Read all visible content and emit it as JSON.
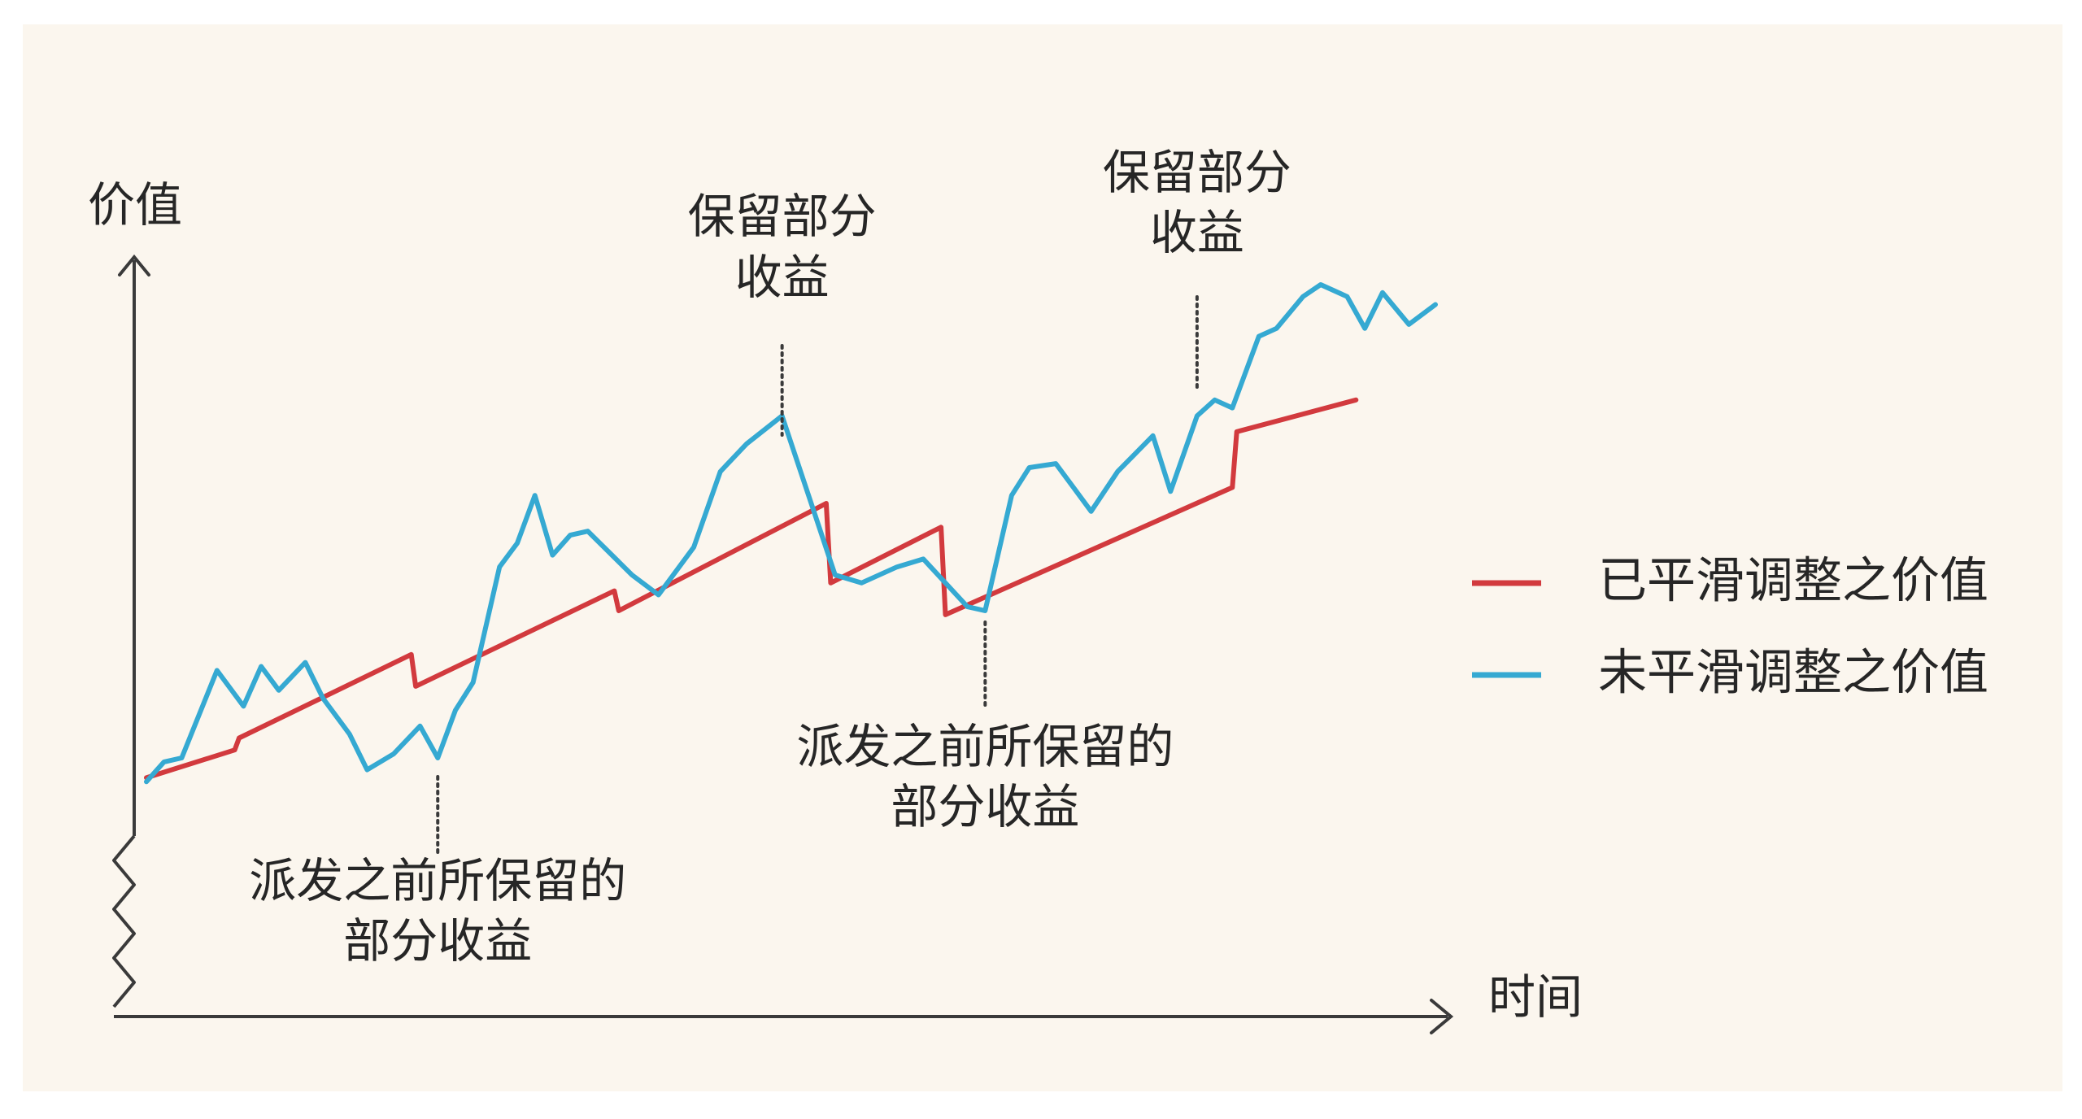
{
  "chart_data": {
    "type": "line",
    "xlabel": "时间",
    "ylabel": "价值",
    "legend_position": "right",
    "colors": {
      "background": "#fbf6ee",
      "axis": "#3a3a3a",
      "smoothed": "#d23a3e",
      "unsmoothed": "#35a9d2",
      "text": "#262626"
    },
    "series": [
      {
        "name": "已平滑调整之价值",
        "color": "#d23a3e",
        "points": [
          [
            0,
            6.5
          ],
          [
            10,
            10.0
          ],
          [
            10.5,
            11.5
          ],
          [
            30,
            22.0
          ],
          [
            30.5,
            18.0
          ],
          [
            53,
            30.0
          ],
          [
            53.5,
            27.5
          ],
          [
            77,
            41.0
          ],
          [
            77.5,
            31.0
          ],
          [
            90,
            38.0
          ],
          [
            90.5,
            27.0
          ],
          [
            123,
            43.0
          ],
          [
            123.5,
            50.0
          ],
          [
            137,
            54.0
          ]
        ]
      },
      {
        "name": "未平滑调整之价值",
        "color": "#35a9d2",
        "points": [
          [
            0,
            6.0
          ],
          [
            2,
            8.5
          ],
          [
            4,
            9.0
          ],
          [
            8,
            20.0
          ],
          [
            11,
            15.5
          ],
          [
            13,
            20.5
          ],
          [
            15,
            17.5
          ],
          [
            18,
            21.0
          ],
          [
            20,
            16.5
          ],
          [
            23,
            12.0
          ],
          [
            25,
            7.5
          ],
          [
            28,
            9.5
          ],
          [
            31,
            13.0
          ],
          [
            33,
            9.0
          ],
          [
            35,
            15.0
          ],
          [
            37,
            18.5
          ],
          [
            40,
            33.0
          ],
          [
            42,
            36.0
          ],
          [
            44,
            42.0
          ],
          [
            46,
            34.5
          ],
          [
            48,
            37.0
          ],
          [
            50,
            37.5
          ],
          [
            55,
            32.0
          ],
          [
            58,
            29.5
          ],
          [
            62,
            35.5
          ],
          [
            65,
            45.0
          ],
          [
            68,
            48.5
          ],
          [
            72,
            52.0
          ],
          [
            75,
            42.0
          ],
          [
            78,
            32.0
          ],
          [
            81,
            31.0
          ],
          [
            85,
            33.0
          ],
          [
            88,
            34.0
          ],
          [
            93,
            28.0
          ],
          [
            95,
            27.5
          ],
          [
            98,
            42.0
          ],
          [
            100,
            45.5
          ],
          [
            103,
            46.0
          ],
          [
            105,
            43.0
          ],
          [
            107,
            40.0
          ],
          [
            110,
            45.0
          ],
          [
            114,
            49.5
          ],
          [
            116,
            42.5
          ],
          [
            119,
            52.0
          ],
          [
            121,
            54.0
          ],
          [
            123,
            53.0
          ],
          [
            126,
            62.0
          ],
          [
            128,
            63.0
          ],
          [
            131,
            67.0
          ],
          [
            133,
            68.5
          ],
          [
            136,
            67.0
          ],
          [
            138,
            63.0
          ],
          [
            140,
            67.5
          ],
          [
            143,
            63.5
          ],
          [
            146,
            66.0
          ]
        ]
      }
    ],
    "annotations": [
      {
        "lines": [
          "派发之前所保留的",
          "部分收益"
        ],
        "x": 33
      },
      {
        "lines": [
          "保留部分",
          "收益"
        ],
        "x": 72
      },
      {
        "lines": [
          "派发之前所保留的",
          "部分收益"
        ],
        "x": 95
      },
      {
        "lines": [
          "保留部分",
          "收益"
        ],
        "x": 119
      }
    ]
  }
}
